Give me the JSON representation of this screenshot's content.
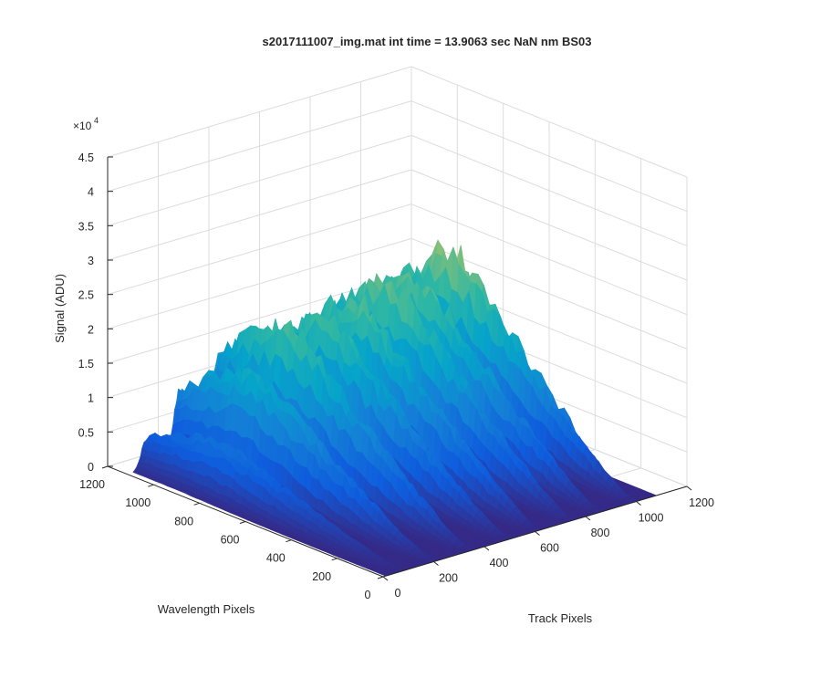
{
  "chart_data": {
    "type": "surface",
    "title": "s2017111007_img.mat int time = 13.9063 sec  NaN nm BS03",
    "xlabel": "Track Pixels",
    "ylabel": "Wavelength Pixels",
    "zlabel": "Signal (ADU)",
    "xlim": [
      0,
      1200
    ],
    "ylim": [
      0,
      1200
    ],
    "zlim": [
      0,
      45000
    ],
    "x_ticks": [
      "0",
      "200",
      "400",
      "600",
      "800",
      "1000",
      "1200"
    ],
    "y_ticks": [
      "0",
      "200",
      "400",
      "600",
      "800",
      "1000",
      "1200"
    ],
    "z_ticks": [
      "0",
      "0.5",
      "1",
      "1.5",
      "2",
      "2.5",
      "3",
      "3.5",
      "4",
      "4.5"
    ],
    "z_exponent_base": "×10",
    "z_exponent_power": "4",
    "colormap": [
      "#352a87",
      "#0f5cdd",
      "#1481d6",
      "#06a4ca",
      "#2eb7a4",
      "#87bf77",
      "#d1bb59",
      "#fec832",
      "#f9fb0e"
    ],
    "grid": true,
    "tracks": [
      {
        "x": 70,
        "peak": 12500
      },
      {
        "x": 195,
        "peak": 25500
      },
      {
        "x": 340,
        "peak": 33000
      },
      {
        "x": 490,
        "peak": 32000
      },
      {
        "x": 610,
        "peak": 34000
      },
      {
        "x": 740,
        "peak": 36000
      },
      {
        "x": 850,
        "peak": 35000
      },
      {
        "x": 985,
        "peak": 38500
      }
    ]
  }
}
